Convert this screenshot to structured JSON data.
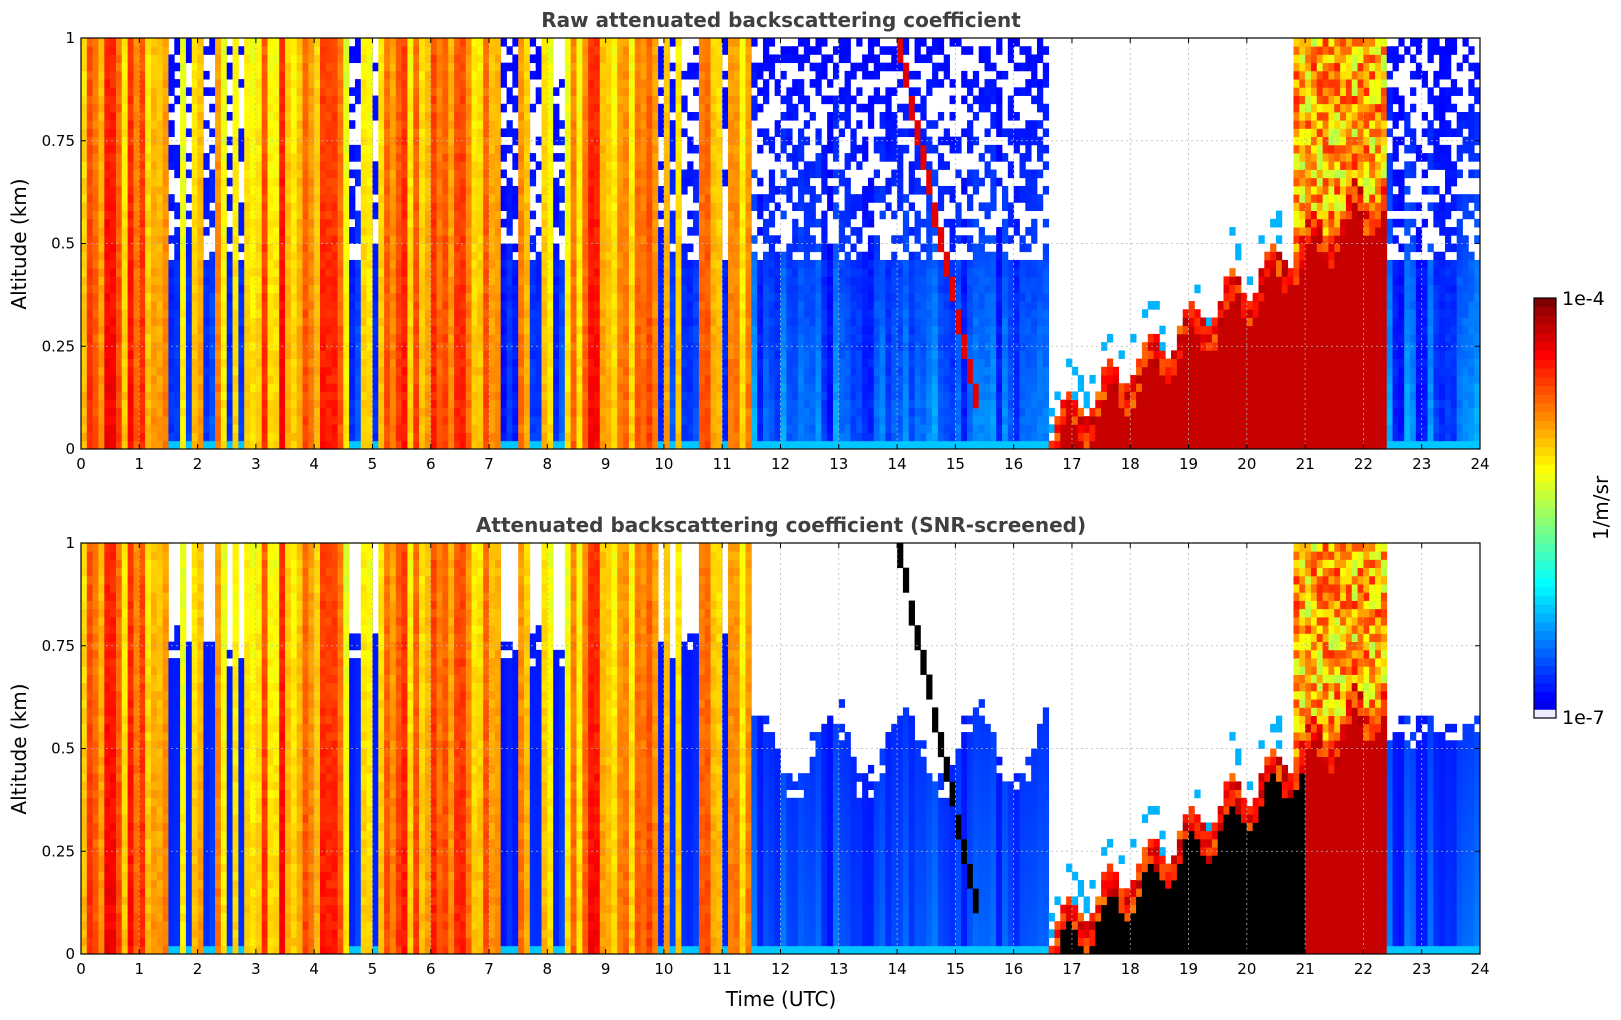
{
  "chart_data": [
    {
      "type": "heatmap",
      "title": "Raw attenuated backscattering coefficient",
      "xlabel": "",
      "ylabel": "Altitude (km)",
      "xlim": [
        0,
        24
      ],
      "ylim": [
        0,
        1
      ],
      "xticks": [
        "0",
        "1",
        "2",
        "3",
        "4",
        "5",
        "6",
        "7",
        "8",
        "9",
        "10",
        "11",
        "12",
        "13",
        "14",
        "15",
        "16",
        "17",
        "18",
        "19",
        "20",
        "21",
        "22",
        "23",
        "24"
      ],
      "yticks": [
        "0",
        "0.25",
        "0.5",
        "0.75",
        "1"
      ],
      "grid": true,
      "screened": false
    },
    {
      "type": "heatmap",
      "title": "Attenuated backscattering coefficient (SNR-screened)",
      "xlabel": "Time (UTC)",
      "ylabel": "Altitude (km)",
      "xlim": [
        0,
        24
      ],
      "ylim": [
        0,
        1
      ],
      "xticks": [
        "0",
        "1",
        "2",
        "3",
        "4",
        "5",
        "6",
        "7",
        "8",
        "9",
        "10",
        "11",
        "12",
        "13",
        "14",
        "15",
        "16",
        "17",
        "18",
        "19",
        "20",
        "21",
        "22",
        "23",
        "24"
      ],
      "yticks": [
        "0",
        "0.25",
        "0.5",
        "0.75",
        "1"
      ],
      "grid": true,
      "screened": true
    }
  ],
  "colorbar": {
    "label": "1/m/sr",
    "scale": "log",
    "min_label": "1e-7",
    "max_label": "1e-4",
    "colormap": "jet",
    "low_color": "#eeeeff",
    "high_color": "#800000"
  },
  "profile_model": {
    "clear_upto_hour": 11.5,
    "fog_start_hour": 16.6,
    "fog_end_hour": 22.4,
    "strong_bands_hours": [
      [
        0.05,
        1.55
      ],
      [
        2.85,
        4.45
      ],
      [
        5.1,
        7.2
      ],
      [
        8.3,
        9.0
      ],
      [
        9.35,
        9.75
      ],
      [
        10.6,
        10.9
      ],
      [
        11.1,
        11.4
      ],
      [
        21.9,
        22.4
      ]
    ]
  }
}
